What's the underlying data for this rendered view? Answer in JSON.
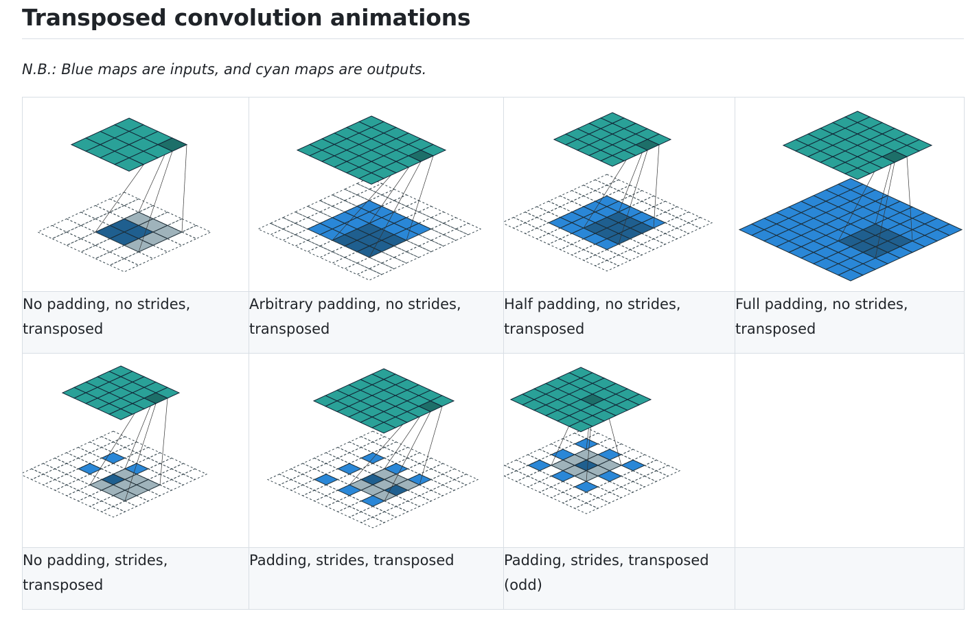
{
  "page": {
    "title": "Transposed convolution animations",
    "note": "N.B.: Blue maps are inputs, and cyan maps are outputs."
  },
  "colors": {
    "output_map": "#2aa198",
    "output_highlight": "#1d6f69",
    "input_map": "#2a87d7",
    "input_highlight": "#1f5f8f",
    "kernel_gray": "#9fb3bb",
    "dashed_grid": "#37474f"
  },
  "rows": [
    {
      "cells": [
        {
          "caption": "No padding, no strides, transposed"
        },
        {
          "caption": "Arbitrary padding, no strides, transposed"
        },
        {
          "caption": "Half padding, no strides, transposed"
        },
        {
          "caption": "Full padding, no strides, transposed"
        }
      ]
    },
    {
      "cells": [
        {
          "caption": "No padding, strides, transposed"
        },
        {
          "caption": "Padding, strides, transposed"
        },
        {
          "caption": "Padding, strides, transposed (odd)"
        },
        {
          "caption": ""
        }
      ]
    }
  ]
}
